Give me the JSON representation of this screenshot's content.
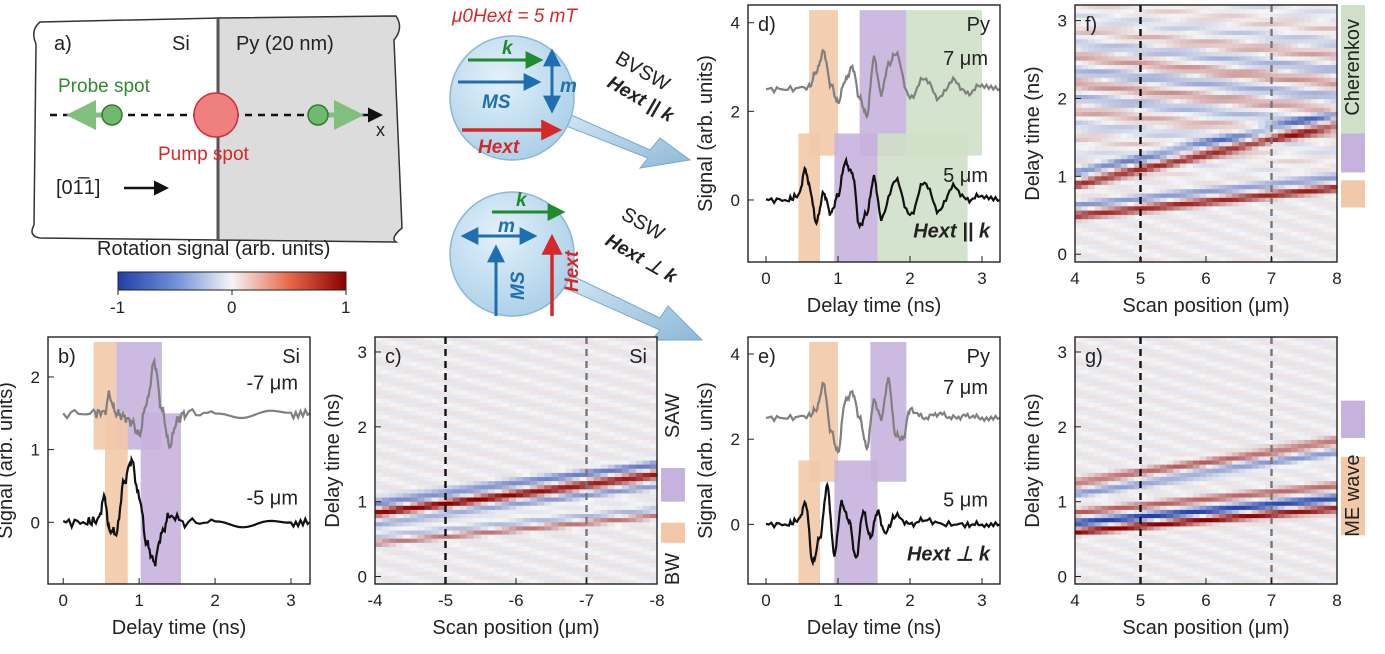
{
  "schematic": {
    "panel": "a)",
    "si": "Si",
    "py": "Py (20 nm)",
    "probe": "Probe spot",
    "pump": "Pump spot",
    "x": "x",
    "dir": "[01̅1]",
    "field": "μ0Hext = 5 mT",
    "bvsw": "BVSW",
    "bvsw_cond": "Hext || k",
    "ssw": "SSW",
    "ssw_cond": "Hext ⊥ k",
    "k": "k",
    "m": "m",
    "ms": "MS",
    "hext": "Hext"
  },
  "colorbar": {
    "title": "Rotation signal (arb. units)",
    "ticks": [
      "-1",
      "0",
      "1"
    ],
    "low": "#1f3fa8",
    "mid": "#f5f5f5",
    "high": "#8b0000"
  },
  "colors": {
    "bw_band": "#f2c9a8",
    "saw_band": "#c6b3dd",
    "cherenkov_band": "#cfe0c8",
    "gray_trace": "#808080",
    "black_trace": "#111111"
  },
  "chart_data": [
    {
      "panel": "b)",
      "type": "line",
      "label": "Si",
      "xlabel": "Delay time (ns)",
      "ylabel": "Signal (arb. units)",
      "xlim": [
        -0.2,
        3.25
      ],
      "ylim": [
        -0.85,
        2.55
      ],
      "xticks": [
        "0",
        "1",
        "2",
        "3"
      ],
      "yticks": [
        "0",
        "1",
        "2"
      ],
      "series": [
        {
          "name": "-7 μm",
          "offset": 1.5,
          "color": "gray",
          "x": [
            0,
            0.4,
            0.55,
            0.6,
            0.7,
            0.8,
            0.9,
            1.0,
            1.1,
            1.2,
            1.3,
            1.4,
            1.5,
            1.6,
            2.0,
            2.5,
            3.0,
            3.25
          ],
          "values": [
            1.5,
            1.5,
            1.52,
            1.75,
            1.5,
            1.45,
            1.38,
            1.2,
            1.65,
            2.2,
            1.55,
            1.05,
            1.4,
            1.5,
            1.5,
            1.5,
            1.5,
            1.5
          ]
        },
        {
          "name": "-5 μm",
          "offset": 0.0,
          "color": "black",
          "x": [
            0,
            0.3,
            0.45,
            0.55,
            0.6,
            0.7,
            0.8,
            0.9,
            1.0,
            1.1,
            1.2,
            1.3,
            1.4,
            1.6,
            2.0,
            2.5,
            3.0,
            3.25
          ],
          "values": [
            0,
            0,
            0.02,
            0.35,
            -0.1,
            -0.15,
            0.55,
            0.85,
            0.35,
            -0.3,
            -0.55,
            -0.15,
            0.1,
            0,
            0,
            0,
            0,
            0
          ]
        }
      ],
      "bands": [
        {
          "x": [
            0.4,
            0.7
          ],
          "kind": "bw"
        },
        {
          "x": [
            0.7,
            1.3
          ],
          "kind": "saw"
        },
        {
          "x": [
            0.55,
            0.85
          ],
          "kind": "bw"
        },
        {
          "x": [
            1.02,
            1.55
          ],
          "kind": "saw"
        }
      ]
    },
    {
      "panel": "c)",
      "type": "heatmap",
      "label": "Si",
      "xlabel": "Scan position (μm)",
      "ylabel": "Delay time (ns)",
      "xlim": [
        -4,
        -8
      ],
      "ylim": [
        -0.1,
        3.2
      ],
      "xticks": [
        "-4",
        "-5",
        "-6",
        "-7",
        "-8"
      ],
      "yticks": [
        "0",
        "1",
        "2",
        "3"
      ],
      "side_labels": [
        "SAW",
        "BW"
      ],
      "dashed_x": [
        -5,
        -7
      ]
    },
    {
      "panel": "d)",
      "type": "line",
      "label": "Py",
      "xlabel": "Delay time (ns)",
      "ylabel": "Signal (arb. units)",
      "xlim": [
        -0.25,
        3.25
      ],
      "ylim": [
        -1.4,
        4.4
      ],
      "xticks": [
        "0",
        "1",
        "2",
        "3"
      ],
      "yticks": [
        "0",
        "2",
        "4"
      ],
      "annotation": "Hext || k",
      "series": [
        {
          "name": "7 μm",
          "offset": 2.5,
          "color": "gray",
          "x": [
            0,
            0.3,
            0.6,
            0.7,
            0.8,
            0.9,
            1.0,
            1.1,
            1.2,
            1.3,
            1.4,
            1.5,
            1.6,
            1.7,
            1.8,
            2.0,
            2.2,
            2.4,
            2.6,
            2.8,
            3.0,
            3.25
          ],
          "values": [
            2.5,
            2.5,
            2.55,
            2.9,
            3.35,
            2.6,
            2.2,
            2.7,
            3.0,
            2.3,
            1.9,
            3.2,
            2.4,
            3.05,
            3.3,
            2.3,
            2.75,
            2.3,
            2.7,
            2.4,
            2.6,
            2.5
          ]
        },
        {
          "name": "5 μm",
          "offset": 0.0,
          "color": "black",
          "x": [
            0,
            0.3,
            0.45,
            0.55,
            0.6,
            0.7,
            0.8,
            0.9,
            1.0,
            1.1,
            1.2,
            1.3,
            1.4,
            1.5,
            1.6,
            1.8,
            2.0,
            2.2,
            2.4,
            2.6,
            2.8,
            3.0,
            3.25
          ],
          "values": [
            0,
            0,
            0.1,
            0.7,
            0.3,
            -0.5,
            0.15,
            -0.3,
            0.1,
            0.85,
            0.6,
            -0.6,
            -0.3,
            0.5,
            -0.4,
            0.45,
            -0.35,
            0.4,
            -0.25,
            0.3,
            0,
            0.1,
            0
          ]
        }
      ],
      "bands": [
        {
          "x": [
            0.6,
            1.0
          ],
          "kind": "bw"
        },
        {
          "x": [
            1.3,
            1.95
          ],
          "kind": "saw"
        },
        {
          "x": [
            1.95,
            3.0
          ],
          "kind": "cherenkov"
        },
        {
          "x": [
            0.45,
            0.75
          ],
          "kind": "bw"
        },
        {
          "x": [
            0.95,
            1.55
          ],
          "kind": "saw"
        },
        {
          "x": [
            1.55,
            2.8
          ],
          "kind": "cherenkov"
        }
      ]
    },
    {
      "panel": "e)",
      "type": "line",
      "label": "Py",
      "xlabel": "Delay time (ns)",
      "ylabel": "Signal (arb. units)",
      "xlim": [
        -0.25,
        3.25
      ],
      "ylim": [
        -1.4,
        4.4
      ],
      "xticks": [
        "0",
        "1",
        "2",
        "3"
      ],
      "yticks": [
        "0",
        "2",
        "4"
      ],
      "annotation": "Hext ⊥ k",
      "series": [
        {
          "name": "7 μm",
          "offset": 2.5,
          "color": "gray",
          "x": [
            0,
            0.3,
            0.6,
            0.7,
            0.8,
            0.9,
            1.0,
            1.1,
            1.2,
            1.3,
            1.4,
            1.5,
            1.6,
            1.7,
            1.8,
            1.9,
            2.0,
            2.2,
            2.4,
            2.6,
            2.8,
            3.0,
            3.25
          ],
          "values": [
            2.5,
            2.5,
            2.55,
            2.7,
            3.3,
            2.2,
            1.7,
            2.9,
            3.1,
            2.5,
            1.8,
            2.9,
            2.5,
            3.4,
            2.1,
            2.0,
            2.7,
            2.5,
            2.6,
            2.5,
            2.55,
            2.5,
            2.5
          ]
        },
        {
          "name": "5 μm",
          "offset": 0.0,
          "color": "black",
          "x": [
            0,
            0.3,
            0.45,
            0.55,
            0.65,
            0.75,
            0.85,
            0.95,
            1.05,
            1.15,
            1.25,
            1.35,
            1.45,
            1.55,
            1.65,
            1.8,
            2.0,
            2.2,
            2.5,
            2.8,
            3.0,
            3.25
          ],
          "values": [
            0,
            0,
            0.1,
            0.5,
            -0.9,
            -0.3,
            0.9,
            -0.7,
            0.5,
            0.1,
            -0.8,
            0.3,
            -0.3,
            0.3,
            -0.2,
            0.2,
            0,
            0.1,
            0,
            0,
            0,
            0
          ]
        }
      ],
      "bands": [
        {
          "x": [
            0.6,
            1.0
          ],
          "kind": "bw"
        },
        {
          "x": [
            1.45,
            1.95
          ],
          "kind": "saw"
        },
        {
          "x": [
            0.45,
            0.75
          ],
          "kind": "bw"
        },
        {
          "x": [
            0.95,
            1.55
          ],
          "kind": "saw"
        }
      ]
    },
    {
      "panel": "f)",
      "type": "heatmap",
      "label": "",
      "xlabel": "Scan position (μm)",
      "ylabel": "Delay time (ns)",
      "xlim": [
        4,
        8
      ],
      "ylim": [
        -0.1,
        3.2
      ],
      "xticks": [
        "4",
        "5",
        "6",
        "7",
        "8"
      ],
      "yticks": [
        "0",
        "1",
        "2",
        "3"
      ],
      "side_labels": [
        "Cherenkov"
      ],
      "dashed_x": [
        5,
        7
      ]
    },
    {
      "panel": "g)",
      "type": "heatmap",
      "label": "",
      "xlabel": "Scan position (μm)",
      "ylabel": "Delay time (ns)",
      "xlim": [
        4,
        8
      ],
      "ylim": [
        -0.1,
        3.2
      ],
      "xticks": [
        "4",
        "5",
        "6",
        "7",
        "8"
      ],
      "yticks": [
        "0",
        "1",
        "2",
        "3"
      ],
      "side_labels": [
        "ME wave"
      ],
      "dashed_x": [
        5,
        7
      ]
    }
  ]
}
